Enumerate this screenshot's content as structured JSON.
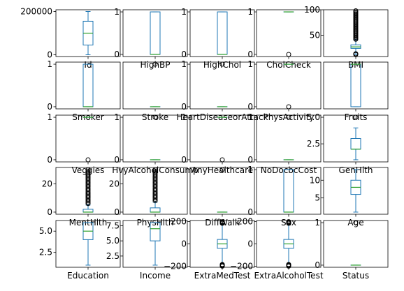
{
  "chart_data": {
    "type": "box",
    "grid": false,
    "layout": {
      "rows": 5,
      "cols": 5
    },
    "colors": {
      "box": "#1f77b4",
      "median": "#2ca02c",
      "flier": "#000000",
      "axes": "#000000"
    },
    "panels": [
      {
        "label": "Id",
        "ylim": [
          -8000,
          208000
        ],
        "yticks": [
          {
            "v": 0,
            "t": "0"
          },
          {
            "v": 200000,
            "t": "200000"
          }
        ],
        "min": 0,
        "q1": 45000,
        "median": 100000,
        "q3": 155000,
        "max": 200000,
        "fliers_low": [],
        "fliers_high": []
      },
      {
        "label": "HighBP",
        "ylim": [
          -0.05,
          1.05
        ],
        "yticks": [
          {
            "v": 0,
            "t": "0"
          },
          {
            "v": 1,
            "t": "1"
          }
        ],
        "min": 0,
        "q1": 0,
        "median": 0,
        "q3": 1,
        "max": 1,
        "fliers_low": [],
        "fliers_high": []
      },
      {
        "label": "HighChol",
        "ylim": [
          -0.05,
          1.05
        ],
        "yticks": [
          {
            "v": 0,
            "t": "0"
          },
          {
            "v": 1,
            "t": "1"
          }
        ],
        "min": 0,
        "q1": 0,
        "median": 0,
        "q3": 1,
        "max": 1,
        "fliers_low": [],
        "fliers_high": []
      },
      {
        "label": "CholCheck",
        "ylim": [
          -0.05,
          1.05
        ],
        "yticks": [
          {
            "v": 0,
            "t": "0"
          },
          {
            "v": 1,
            "t": "1"
          }
        ],
        "min": 1,
        "q1": 1,
        "median": 1,
        "q3": 1,
        "max": 1,
        "fliers_low": [
          0
        ],
        "fliers_high": []
      },
      {
        "label": "BMI",
        "ylim": [
          8,
          100
        ],
        "yticks": [
          {
            "v": 50,
            "t": "50"
          },
          {
            "v": 100,
            "t": "100"
          }
        ],
        "min": 12,
        "q1": 24,
        "median": 27,
        "q3": 31,
        "max": 41,
        "fliers_low": [
          12,
          12.5,
          13,
          13.5
        ],
        "fliers_high": [
          42,
          44,
          46,
          48,
          50,
          52,
          54,
          56,
          58,
          60,
          62,
          64,
          66,
          68,
          70,
          72,
          74,
          76,
          78,
          80,
          82,
          84,
          86,
          88,
          90,
          92,
          94,
          96,
          98
        ]
      },
      {
        "label": "Smoker",
        "ylim": [
          -0.05,
          1.05
        ],
        "yticks": [
          {
            "v": 0,
            "t": "0"
          },
          {
            "v": 1,
            "t": "1"
          }
        ],
        "min": 0,
        "q1": 0,
        "median": 0,
        "q3": 1,
        "max": 1,
        "fliers_low": [],
        "fliers_high": []
      },
      {
        "label": "Stroke",
        "ylim": [
          -0.05,
          1.05
        ],
        "yticks": [],
        "min": 0,
        "q1": 0,
        "median": 0,
        "q3": 0,
        "max": 0,
        "fliers_low": [],
        "fliers_high": [
          1
        ]
      },
      {
        "label": "HeartDiseaseorAttack",
        "ylim": [
          -0.05,
          1.05
        ],
        "yticks": [
          {
            "v": 0,
            "t": "0"
          },
          {
            "v": 1,
            "t": "1"
          }
        ],
        "min": 0,
        "q1": 0,
        "median": 0,
        "q3": 0,
        "max": 0,
        "fliers_low": [],
        "fliers_high": [
          1
        ]
      },
      {
        "label": "PhysActivity",
        "ylim": [
          -0.05,
          1.05
        ],
        "yticks": [
          {
            "v": 0,
            "t": "0"
          },
          {
            "v": 1,
            "t": "1"
          }
        ],
        "min": 1,
        "q1": 1,
        "median": 1,
        "q3": 1,
        "max": 1,
        "fliers_low": [
          0
        ],
        "fliers_high": []
      },
      {
        "label": "Fruits",
        "ylim": [
          -0.05,
          1.05
        ],
        "yticks": [],
        "min": 0,
        "q1": 0,
        "median": 1,
        "q3": 1,
        "max": 1,
        "fliers_low": [],
        "fliers_high": []
      },
      {
        "label": "Veggies",
        "ylim": [
          -0.05,
          1.05
        ],
        "yticks": [
          {
            "v": 0,
            "t": "0"
          },
          {
            "v": 1,
            "t": "1"
          }
        ],
        "min": 1,
        "q1": 1,
        "median": 1,
        "q3": 1,
        "max": 1,
        "fliers_low": [
          0
        ],
        "fliers_high": []
      },
      {
        "label": "HvyAlcoholConsump",
        "ylim": [
          -0.05,
          1.05
        ],
        "yticks": [
          {
            "v": 0,
            "t": "0"
          },
          {
            "v": 1,
            "t": "1"
          }
        ],
        "min": 0,
        "q1": 0,
        "median": 0,
        "q3": 0,
        "max": 0,
        "fliers_low": [],
        "fliers_high": [
          1
        ]
      },
      {
        "label": "AnyHealthcare",
        "ylim": [
          -0.05,
          1.05
        ],
        "yticks": [
          {
            "v": 0,
            "t": "0"
          },
          {
            "v": 1,
            "t": "1"
          }
        ],
        "min": 1,
        "q1": 1,
        "median": 1,
        "q3": 1,
        "max": 1,
        "fliers_low": [
          0
        ],
        "fliers_high": []
      },
      {
        "label": "NoDocbcCost",
        "ylim": [
          -0.05,
          1.05
        ],
        "yticks": [
          {
            "v": 0,
            "t": "0"
          },
          {
            "v": 1,
            "t": "1"
          }
        ],
        "min": 0,
        "q1": 0,
        "median": 0,
        "q3": 0,
        "max": 0,
        "fliers_low": [],
        "fliers_high": [
          1
        ]
      },
      {
        "label": "GenHlth",
        "ylim": [
          0.8,
          5.2
        ],
        "yticks": [
          {
            "v": 2.5,
            "t": "2.5"
          },
          {
            "v": 5.0,
            "t": "5.0"
          }
        ],
        "min": 1,
        "q1": 2,
        "median": 2,
        "q3": 3,
        "max": 4,
        "fliers_low": [],
        "fliers_high": [
          5
        ]
      },
      {
        "label": "MentHlth",
        "ylim": [
          -1.5,
          31.5
        ],
        "yticks": [
          {
            "v": 0,
            "t": "0"
          },
          {
            "v": 20,
            "t": "20"
          }
        ],
        "min": 0,
        "q1": 0,
        "median": 0,
        "q3": 2,
        "max": 5,
        "fliers_low": [],
        "fliers_high": [
          6,
          7,
          8,
          9,
          10,
          11,
          12,
          13,
          14,
          15,
          16,
          17,
          18,
          19,
          20,
          21,
          22,
          23,
          24,
          25,
          26,
          27,
          28,
          29,
          30
        ]
      },
      {
        "label": "PhysHlth",
        "ylim": [
          -1.5,
          31.5
        ],
        "yticks": [
          {
            "v": 0,
            "t": "0"
          },
          {
            "v": 20,
            "t": "20"
          }
        ],
        "min": 0,
        "q1": 0,
        "median": 0,
        "q3": 3,
        "max": 7,
        "fliers_low": [],
        "fliers_high": [
          8,
          9,
          10,
          11,
          12,
          13,
          14,
          15,
          16,
          17,
          18,
          19,
          20,
          21,
          22,
          23,
          24,
          25,
          26,
          27,
          28,
          29,
          30
        ]
      },
      {
        "label": "DiffWalk",
        "ylim": [
          -0.05,
          1.05
        ],
        "yticks": [],
        "min": 0,
        "q1": 0,
        "median": 0,
        "q3": 0,
        "max": 0,
        "fliers_low": [],
        "fliers_high": [
          1
        ]
      },
      {
        "label": "Sex",
        "ylim": [
          -0.05,
          1.05
        ],
        "yticks": [
          {
            "v": 0,
            "t": "0"
          },
          {
            "v": 1,
            "t": "1"
          }
        ],
        "min": 0,
        "q1": 0,
        "median": 0,
        "q3": 1,
        "max": 1,
        "fliers_low": [],
        "fliers_high": []
      },
      {
        "label": "Age",
        "ylim": [
          0.4,
          13.6
        ],
        "yticks": [
          {
            "v": 5,
            "t": "5"
          },
          {
            "v": 10,
            "t": "10"
          }
        ],
        "min": 1,
        "q1": 6,
        "median": 8,
        "q3": 10,
        "max": 13,
        "fliers_low": [],
        "fliers_high": []
      },
      {
        "label": "Education",
        "ylim": [
          0.75,
          6.25
        ],
        "yticks": [
          {
            "v": 2.5,
            "t": "2.5"
          },
          {
            "v": 5.0,
            "t": "5.0"
          }
        ],
        "min": 1,
        "q1": 4,
        "median": 5,
        "q3": 6,
        "max": 6,
        "fliers_low": [],
        "fliers_high": []
      },
      {
        "label": "Income",
        "ylim": [
          0.65,
          8.35
        ],
        "yticks": [
          {
            "v": 2.5,
            "t": "2.5"
          },
          {
            "v": 5.0,
            "t": "5.0"
          },
          {
            "v": 7.5,
            "t": "7.5"
          }
        ],
        "min": 1,
        "q1": 5,
        "median": 7,
        "q3": 8,
        "max": 8,
        "fliers_low": [],
        "fliers_high": []
      },
      {
        "label": "ExtraMedTest",
        "ylim": [
          -210,
          210
        ],
        "yticks": [
          {
            "v": -200,
            "t": "−200"
          },
          {
            "v": 0,
            "t": "0"
          },
          {
            "v": 200,
            "t": "200"
          }
        ],
        "min": -180,
        "q1": -40,
        "median": 0,
        "q3": 40,
        "max": 180,
        "fliers_low": [
          -200,
          -195,
          -190,
          -185
        ],
        "fliers_high": [
          185,
          190,
          195,
          200
        ]
      },
      {
        "label": "ExtraAlcoholTest",
        "ylim": [
          -210,
          210
        ],
        "yticks": [
          {
            "v": -200,
            "t": "−200"
          },
          {
            "v": 0,
            "t": "0"
          },
          {
            "v": 200,
            "t": "200"
          }
        ],
        "min": -180,
        "q1": -40,
        "median": 0,
        "q3": 40,
        "max": 180,
        "fliers_low": [
          -200,
          -195,
          -190,
          -185
        ],
        "fliers_high": [
          185,
          190,
          195,
          200
        ]
      },
      {
        "label": "Status",
        "ylim": [
          -0.05,
          1.05
        ],
        "yticks": [
          {
            "v": 0,
            "t": "0"
          },
          {
            "v": 1,
            "t": "1"
          }
        ],
        "min": 0,
        "q1": 0,
        "median": 0,
        "q3": 0,
        "max": 0,
        "fliers_low": [],
        "fliers_high": [
          1
        ]
      }
    ]
  }
}
